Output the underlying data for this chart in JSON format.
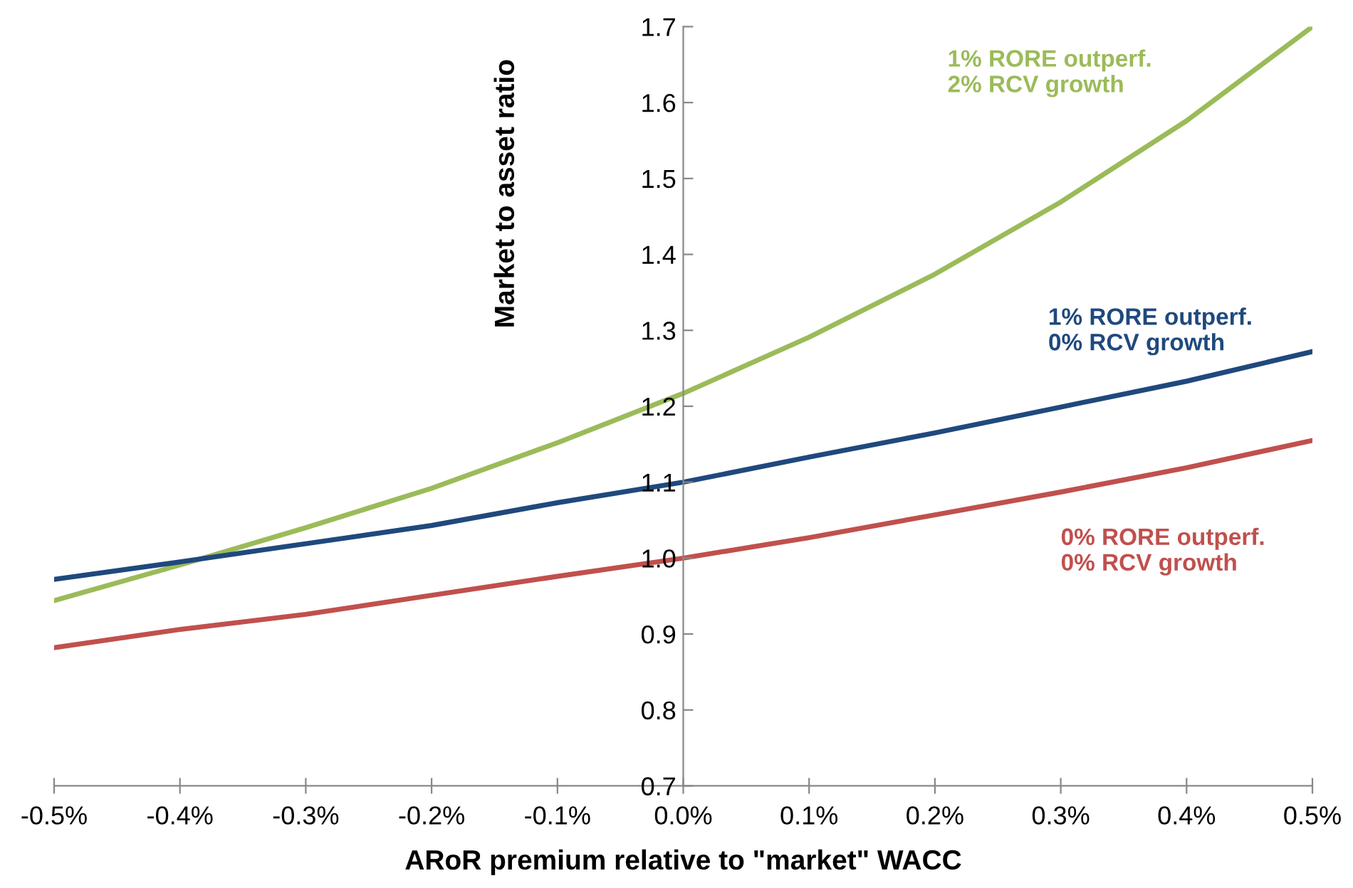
{
  "chart_data": {
    "type": "line",
    "xlabel": "ARoR premium relative to \"market\" WACC",
    "ylabel": "Market to asset ratio",
    "x": [
      -0.5,
      -0.4,
      -0.3,
      -0.2,
      -0.1,
      0.0,
      0.1,
      0.2,
      0.3,
      0.4,
      0.5
    ],
    "series": [
      {
        "name": "1% RORE outperf.\n2% RCV growth",
        "color": "#9bbb59",
        "values": [
          0.944,
          0.991,
          1.04,
          1.092,
          1.152,
          1.217,
          1.291,
          1.374,
          1.469,
          1.576,
          1.7
        ]
      },
      {
        "name": "1% RORE outperf.\n0% RCV growth",
        "color": "#1f497d",
        "values": [
          0.972,
          0.995,
          1.019,
          1.043,
          1.073,
          1.1,
          1.133,
          1.165,
          1.199,
          1.233,
          1.272
        ]
      },
      {
        "name": "0% RORE outperf.\n0% RCV growth",
        "color": "#c0504d",
        "values": [
          0.882,
          0.906,
          0.926,
          0.951,
          0.976,
          1.0,
          1.027,
          1.057,
          1.087,
          1.119,
          1.155
        ]
      }
    ],
    "xlim": [
      -0.5,
      0.5
    ],
    "xticks": [
      {
        "value": -0.5,
        "label": "-0.5%"
      },
      {
        "value": -0.4,
        "label": "-0.4%"
      },
      {
        "value": -0.3,
        "label": "-0.3%"
      },
      {
        "value": -0.2,
        "label": "-0.2%"
      },
      {
        "value": -0.1,
        "label": "-0.1%"
      },
      {
        "value": 0.0,
        "label": "0.0%"
      },
      {
        "value": 0.1,
        "label": "0.1%"
      },
      {
        "value": 0.2,
        "label": "0.2%"
      },
      {
        "value": 0.3,
        "label": "0.3%"
      },
      {
        "value": 0.4,
        "label": "0.4%"
      },
      {
        "value": 0.5,
        "label": "0.5%"
      }
    ],
    "ylim": [
      0.7,
      1.7
    ],
    "yticks": [
      0.7,
      0.8,
      0.9,
      {
        "value": 1.0,
        "label": "1.0"
      },
      1.1,
      1.2,
      1.3,
      1.4,
      1.5,
      1.6,
      1.7
    ],
    "grid": false,
    "marker": "none",
    "line_style": "solid"
  }
}
